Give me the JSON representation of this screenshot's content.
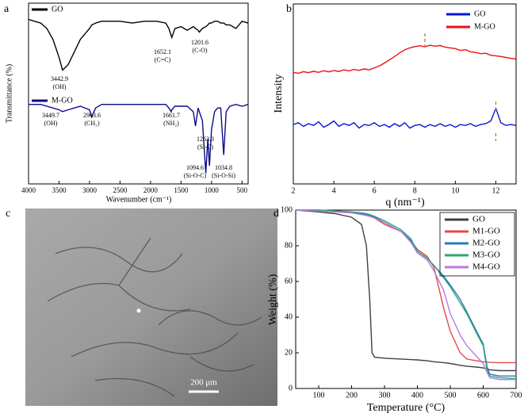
{
  "chart_data": [
    {
      "type": "line",
      "label": "a",
      "xlabel": "Wavenumber (cm⁻¹)",
      "ylabel": "Transmittance (%)",
      "xlim": [
        4000,
        400
      ],
      "ylim": [
        0,
        100
      ],
      "xticks": [
        4000,
        3500,
        3000,
        2500,
        2000,
        1500,
        1000,
        500
      ],
      "x": [
        4000,
        3900,
        3800,
        3700,
        3600,
        3500,
        3443,
        3350,
        3250,
        3150,
        3000,
        2963,
        2900,
        2800,
        2500,
        2300,
        2100,
        1900,
        1750,
        1700,
        1661,
        1652,
        1600,
        1500,
        1400,
        1300,
        1263,
        1220,
        1201,
        1150,
        1094,
        1060,
        1034,
        1000,
        950,
        900,
        850,
        800,
        760,
        700,
        600,
        500,
        400
      ],
      "series": [
        {
          "name": "GO",
          "color": "#000000",
          "values": [
            91,
            90,
            89,
            86,
            80,
            70,
            63,
            66,
            73,
            80,
            86,
            88,
            89,
            90,
            90,
            89,
            90,
            90,
            89,
            86,
            82,
            81,
            86,
            87,
            85,
            87,
            86,
            85,
            84,
            86,
            87,
            88,
            89,
            89,
            90,
            90,
            89,
            89,
            88,
            88,
            86,
            90,
            89
          ],
          "annotations": [
            [
              "3442.9",
              "(OH)"
            ],
            [
              "1652.1",
              "(C=C)"
            ],
            [
              "1201.6",
              "(C-O)"
            ]
          ]
        },
        {
          "name": "M-GO",
          "color": "#0a0a8c",
          "values": [
            44,
            44,
            44,
            43,
            42,
            41,
            40,
            41,
            42,
            43,
            41,
            37,
            42,
            44,
            44,
            44,
            44,
            44,
            44,
            42,
            40,
            41,
            43,
            43,
            43,
            40,
            32,
            42,
            40,
            35,
            6,
            25,
            10,
            30,
            40,
            42,
            42,
            16,
            40,
            43,
            44,
            43,
            44
          ],
          "annotations": [
            [
              "3449.7",
              "(OH)"
            ],
            [
              "2963.6",
              "(CH₂)"
            ],
            [
              "1661.7",
              "(NH₂)"
            ],
            [
              "1263.3",
              "(Si-C)"
            ],
            [
              "1094.6",
              "(Si-O-C)"
            ],
            [
              "1034.8",
              "(Si-O-Si)"
            ]
          ]
        }
      ]
    },
    {
      "type": "line",
      "label": "b",
      "xlabel": "q (nm⁻¹)",
      "ylabel": "Intensity",
      "xlim": [
        2,
        13
      ],
      "ylim": [
        0,
        100
      ],
      "xticks": [
        2,
        4,
        6,
        8,
        10,
        12
      ],
      "legend": "upper right",
      "peak_markers": [
        8.5,
        12
      ],
      "x": [
        2,
        2.25,
        2.5,
        2.75,
        3,
        3.25,
        3.5,
        3.75,
        4,
        4.25,
        4.5,
        4.75,
        5,
        5.25,
        5.5,
        5.75,
        6,
        6.25,
        6.5,
        6.75,
        7,
        7.25,
        7.5,
        7.75,
        8,
        8.25,
        8.5,
        8.75,
        9,
        9.25,
        9.5,
        9.75,
        10,
        10.25,
        10.5,
        10.75,
        11,
        11.25,
        11.5,
        11.75,
        12,
        12.25,
        12.5,
        12.75,
        13
      ],
      "series": [
        {
          "name": "GO",
          "color": "#0a14d6",
          "values": [
            33,
            34,
            32,
            33.5,
            32.5,
            34.5,
            31.5,
            33,
            35,
            32,
            33.5,
            32.5,
            34,
            31,
            33,
            32.5,
            34,
            32,
            33,
            31.5,
            33.5,
            32,
            34,
            31,
            32.5,
            33,
            31.5,
            33,
            32,
            33.5,
            32,
            33,
            31.5,
            33,
            32.5,
            33.5,
            32,
            33,
            33.5,
            35,
            42,
            34,
            32.5,
            33,
            32.5
          ]
        },
        {
          "name": "M-GO",
          "color": "#ee1111",
          "values": [
            62,
            61.5,
            62.4,
            61.8,
            62.6,
            62,
            62.9,
            62.3,
            63,
            62.5,
            63.4,
            62.8,
            63.6,
            63.1,
            63.9,
            63.4,
            64.5,
            65.6,
            67.2,
            69,
            70.8,
            72.8,
            74.5,
            75.6,
            76.3,
            76.8,
            76.2,
            77.1,
            76.5,
            76.9,
            76,
            75.6,
            75.2,
            74.2,
            74.6,
            73.4,
            73.1,
            72.4,
            72.6,
            71.5,
            71.2,
            70.8,
            70.3,
            69.8,
            69.4
          ]
        }
      ]
    },
    {
      "type": "line",
      "label": "d",
      "xlabel": "Temperature (°C)",
      "ylabel": "Weight (%)",
      "xlim": [
        30,
        700
      ],
      "ylim": [
        0,
        100
      ],
      "xticks": [
        100,
        200,
        300,
        400,
        500,
        600,
        700
      ],
      "yticks": [
        0,
        20,
        40,
        60,
        80,
        100
      ],
      "legend": "upper right",
      "x": [
        30,
        100,
        150,
        200,
        230,
        245,
        255,
        262,
        270,
        300,
        350,
        380,
        400,
        430,
        450,
        480,
        500,
        530,
        550,
        580,
        600,
        612,
        620,
        650,
        700
      ],
      "series": [
        {
          "name": "GO",
          "color": "#404040",
          "values": [
            100,
            99,
            98,
            96,
            92,
            80,
            50,
            20,
            17.5,
            17,
            16.5,
            16.2,
            16,
            15.5,
            15,
            14.5,
            14,
            13,
            12.5,
            12,
            11.5,
            11,
            10.5,
            10,
            10
          ]
        },
        {
          "name": "M1-GO",
          "color": "#e8474b",
          "values": [
            100,
            99.5,
            99,
            98.5,
            97.5,
            97,
            96.5,
            96,
            95.5,
            92,
            88,
            83,
            78,
            74,
            68,
            45,
            32,
            20,
            16.5,
            15.5,
            15,
            14.8,
            14.6,
            14.5,
            14.5
          ]
        },
        {
          "name": "M2-GO",
          "color": "#2a7ab9",
          "values": [
            100,
            100,
            99.5,
            99,
            98,
            97.5,
            97,
            96.5,
            96,
            93,
            88,
            83,
            77,
            73,
            69,
            63,
            58,
            50,
            43,
            32,
            25,
            12,
            8,
            7,
            7
          ]
        },
        {
          "name": "M3-GO",
          "color": "#2fa37a",
          "values": [
            100,
            100,
            99.5,
            99,
            98.5,
            98,
            97.5,
            97,
            96.5,
            94,
            89,
            84,
            77,
            73,
            69,
            62,
            57,
            48,
            42,
            31,
            24,
            10,
            7,
            6,
            5.5
          ]
        },
        {
          "name": "M4-GO",
          "color": "#b57be0",
          "values": [
            100,
            99.5,
            99,
            98.5,
            97.5,
            97,
            96.5,
            96,
            95.5,
            93,
            88,
            82,
            76,
            72,
            66,
            55,
            42,
            30,
            24,
            18,
            14,
            9,
            6,
            5,
            5
          ]
        }
      ]
    }
  ],
  "image_panel": {
    "label": "c",
    "scale_bar": "200 μm"
  }
}
